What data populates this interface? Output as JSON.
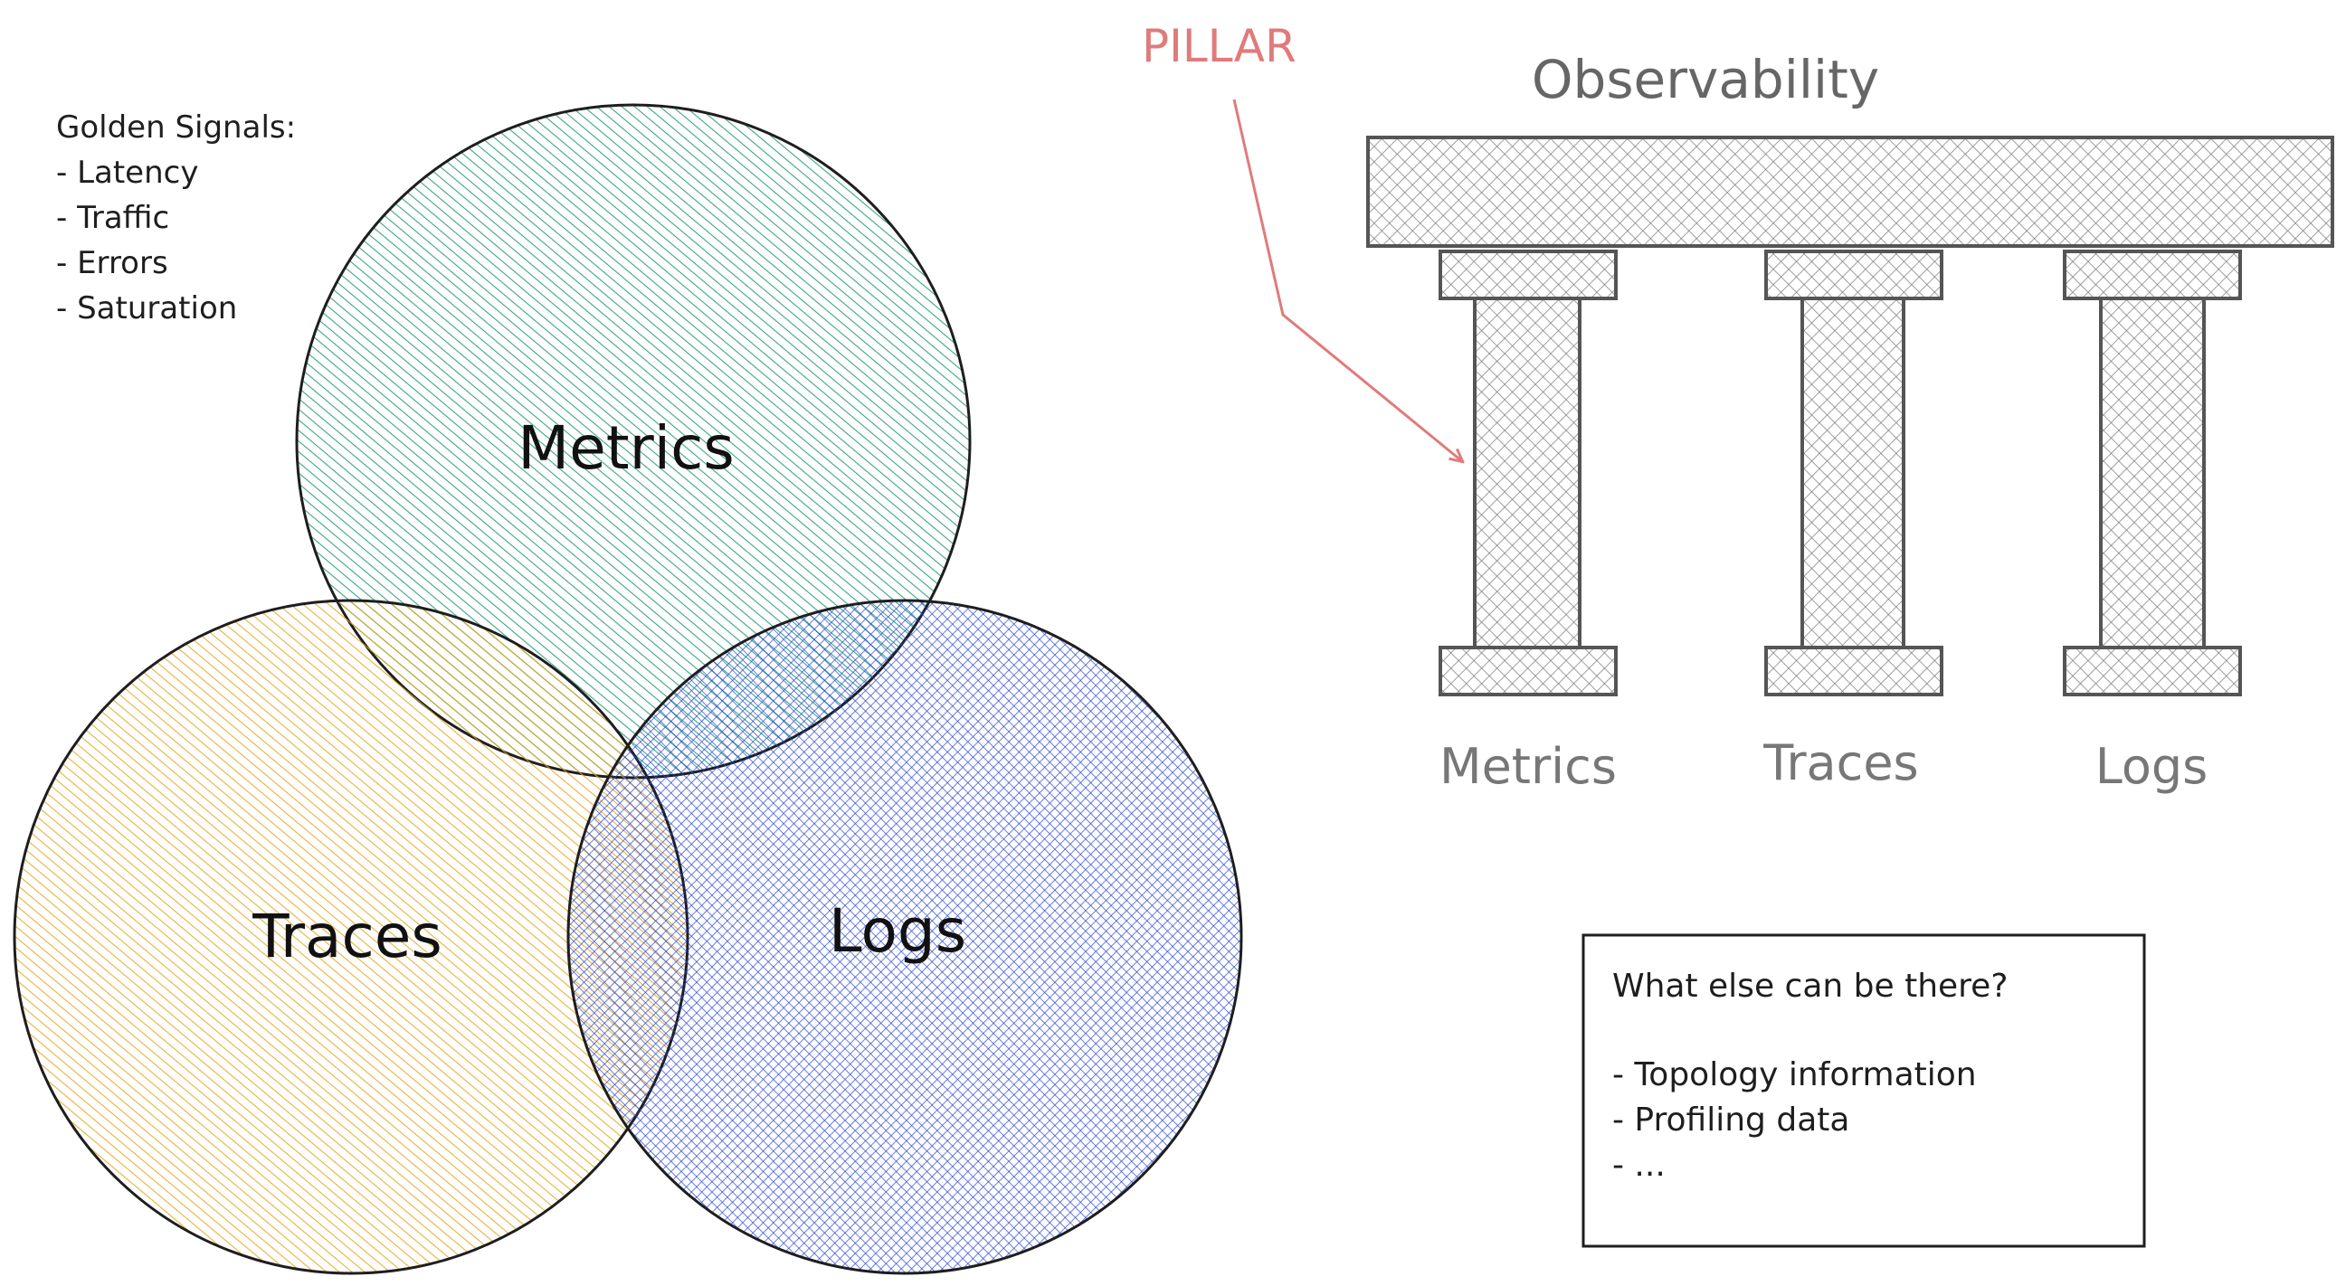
{
  "golden_signals": {
    "title": "Golden Signals:",
    "items": [
      "- Latency",
      "- Traffic",
      "- Errors",
      "- Saturation"
    ]
  },
  "venn": {
    "metrics": {
      "label": "Metrics",
      "color": "#0c8f6a"
    },
    "traces": {
      "label": "Traces",
      "color": "#e8a317"
    },
    "logs": {
      "label": "Logs",
      "color": "#1f3fd1"
    }
  },
  "temple": {
    "title": "Observability",
    "pillar_annotation": "PILLAR",
    "pillar_labels": [
      "Metrics",
      "Traces",
      "Logs"
    ],
    "stroke_color": "#555555",
    "annotation_color": "#e07b7b"
  },
  "note_box": {
    "title": "What else can be there?",
    "items": [
      "- Topology information",
      "- Profiling data",
      "- ..."
    ]
  }
}
